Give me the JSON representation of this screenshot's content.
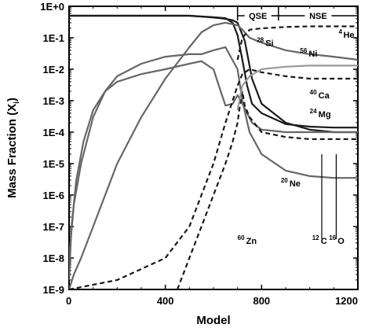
{
  "chart_data": {
    "type": "line",
    "title": "",
    "xlabel": "Model",
    "ylabel": "Mass Fraction (X",
    "ylabel_sub": "i",
    "ylabel_close": ")",
    "xlim": [
      0,
      1200
    ],
    "ylim": [
      1e-09,
      1
    ],
    "y_log": true,
    "x_ticks": [
      {
        "v": 0,
        "label": "0"
      },
      {
        "v": 400,
        "label": "400"
      },
      {
        "v": 800,
        "label": "800"
      },
      {
        "v": 1200,
        "label": "1200"
      }
    ],
    "y_ticks": [
      {
        "v": 1,
        "label": "1E+0"
      },
      {
        "v": 0.1,
        "label": "1E-1"
      },
      {
        "v": 0.01,
        "label": "1E-2"
      },
      {
        "v": 0.001,
        "label": "1E-3"
      },
      {
        "v": 0.0001,
        "label": "1E-4"
      },
      {
        "v": 1e-05,
        "label": "1E-5"
      },
      {
        "v": 1e-06,
        "label": "1E-6"
      },
      {
        "v": 1e-07,
        "label": "1E-7"
      },
      {
        "v": 1e-08,
        "label": "1E-8"
      },
      {
        "v": 1e-09,
        "label": "1E-9"
      }
    ],
    "regions": [
      {
        "label": "QSE",
        "x_start": 700,
        "x_end": 870
      },
      {
        "label": "NSE",
        "x_start": 870,
        "x_end": 1200
      }
    ],
    "series": [
      {
        "name": "12C",
        "style": "solid",
        "color": "#1a1a1a",
        "x": [
          0,
          200,
          400,
          500,
          600,
          650,
          680,
          700,
          720,
          740,
          760,
          800,
          900,
          1000,
          1100,
          1200
        ],
        "y": [
          0.5,
          0.5,
          0.5,
          0.5,
          0.45,
          0.42,
          0.3,
          0.12,
          0.02,
          0.003,
          0.0008,
          0.0004,
          0.00018,
          0.00015,
          0.00014,
          0.00014
        ]
      },
      {
        "name": "16O",
        "style": "solid",
        "color": "#1a1a1a",
        "x": [
          0,
          200,
          400,
          500,
          600,
          650,
          680,
          700,
          730,
          760,
          800,
          900,
          1000,
          1100,
          1200
        ],
        "y": [
          0.5,
          0.5,
          0.5,
          0.5,
          0.44,
          0.4,
          0.36,
          0.3,
          0.08,
          0.005,
          0.0008,
          0.0002,
          0.00012,
          0.0001,
          0.0001
        ]
      },
      {
        "name": "20Ne",
        "style": "solid",
        "color": "#666666",
        "x": [
          0,
          20,
          50,
          100,
          150,
          200,
          300,
          400,
          500,
          550,
          600,
          650,
          700,
          720,
          750,
          800,
          900,
          1000,
          1100,
          1200
        ],
        "y": [
          1e-08,
          5e-07,
          1e-05,
          0.0003,
          0.002,
          0.006,
          0.015,
          0.025,
          0.03,
          0.03,
          0.04,
          0.05,
          0.01,
          0.001,
          0.0001,
          2e-05,
          6e-06,
          4e-06,
          3.5e-06,
          3.5e-06
        ]
      },
      {
        "name": "24Mg",
        "style": "solid",
        "color": "#666666",
        "x": [
          0,
          10,
          30,
          60,
          100,
          150,
          200,
          300,
          400,
          500,
          550,
          600,
          630,
          650,
          680,
          700,
          720,
          760,
          800,
          900,
          1000,
          1100,
          1200
        ],
        "y": [
          2e-09,
          1e-07,
          3e-06,
          5e-05,
          0.0005,
          0.002,
          0.004,
          0.007,
          0.01,
          0.015,
          0.018,
          0.01,
          0.002,
          0.0007,
          0.0008,
          0.0015,
          0.0008,
          0.0002,
          0.00012,
          0.0001,
          0.0001,
          0.0001,
          0.0001
        ]
      },
      {
        "name": "28Si",
        "style": "solid",
        "color": "#666666",
        "x": [
          0,
          20,
          50,
          100,
          150,
          200,
          300,
          400,
          500,
          550,
          600,
          650,
          700,
          720,
          750,
          800,
          900,
          1000,
          1100,
          1200
        ],
        "y": [
          1e-09,
          3e-09,
          1e-08,
          1e-07,
          1e-06,
          1e-05,
          0.0003,
          0.005,
          0.05,
          0.15,
          0.25,
          0.3,
          0.25,
          0.18,
          0.1,
          0.07,
          0.04,
          0.03,
          0.025,
          0.02
        ]
      },
      {
        "name": "40Ca",
        "style": "dashed",
        "color": "#1a1a1a",
        "x": [
          0,
          200,
          400,
          500,
          600,
          650,
          700,
          720,
          750,
          800,
          900,
          1000,
          1100,
          1200
        ],
        "y": [
          1e-09,
          2e-09,
          1e-08,
          1e-07,
          1e-05,
          0.0002,
          0.003,
          0.007,
          0.01,
          0.008,
          0.006,
          0.005,
          0.005,
          0.005
        ]
      },
      {
        "name": "56Ni",
        "style": "dashed",
        "color": "#1a1a1a",
        "x": [
          700,
          720,
          750,
          800,
          900,
          1000,
          1100,
          1200
        ],
        "y": [
          0.02,
          0.1,
          0.18,
          0.2,
          0.22,
          0.23,
          0.23,
          0.23
        ]
      },
      {
        "name": "60Zn",
        "style": "dashed",
        "color": "#1a1a1a",
        "x": [
          450,
          500,
          550,
          600,
          650,
          680,
          700,
          710,
          720,
          730,
          750,
          800,
          900,
          1000,
          1100,
          1200
        ],
        "y": [
          1e-09,
          1e-08,
          1e-07,
          1e-06,
          1e-05,
          5e-05,
          0.0002,
          0.0007,
          0.002,
          0.0007,
          0.0003,
          0.0001,
          7e-05,
          6e-05,
          6e-05,
          6e-05
        ]
      },
      {
        "name": "4He",
        "style": "solid",
        "color": "#999999",
        "x": [
          700,
          720,
          750,
          800,
          900,
          1000,
          1100,
          1200
        ],
        "y": [
          0.0005,
          0.003,
          0.006,
          0.01,
          0.012,
          0.013,
          0.013,
          0.013
        ]
      }
    ],
    "annotations": [
      {
        "name": "28Si",
        "mass": "28",
        "symbol": "Si",
        "x": 780,
        "y": 0.055
      },
      {
        "name": "56Ni",
        "mass": "56",
        "symbol": "Ni",
        "x": 960,
        "y": 0.025
      },
      {
        "name": "4He",
        "mass": "4",
        "symbol": "He",
        "x": 1120,
        "y": 0.1
      },
      {
        "name": "40Ca",
        "mass": "40",
        "symbol": "Ca",
        "x": 1000,
        "y": 0.0012
      },
      {
        "name": "24Mg",
        "mass": "24",
        "symbol": "Mg",
        "x": 1000,
        "y": 0.0003
      },
      {
        "name": "20Ne",
        "mass": "20",
        "symbol": "Ne",
        "x": 880,
        "y": 1.9e-06
      },
      {
        "name": "60Zn",
        "mass": "60",
        "symbol": "Zn",
        "x": 700,
        "y": 2.8e-08
      },
      {
        "name": "12C",
        "mass": "12",
        "symbol": "C",
        "x": 1010,
        "y": 2.8e-08
      },
      {
        "name": "16O",
        "mass": "16",
        "symbol": "O",
        "x": 1080,
        "y": 2.8e-08
      }
    ]
  }
}
